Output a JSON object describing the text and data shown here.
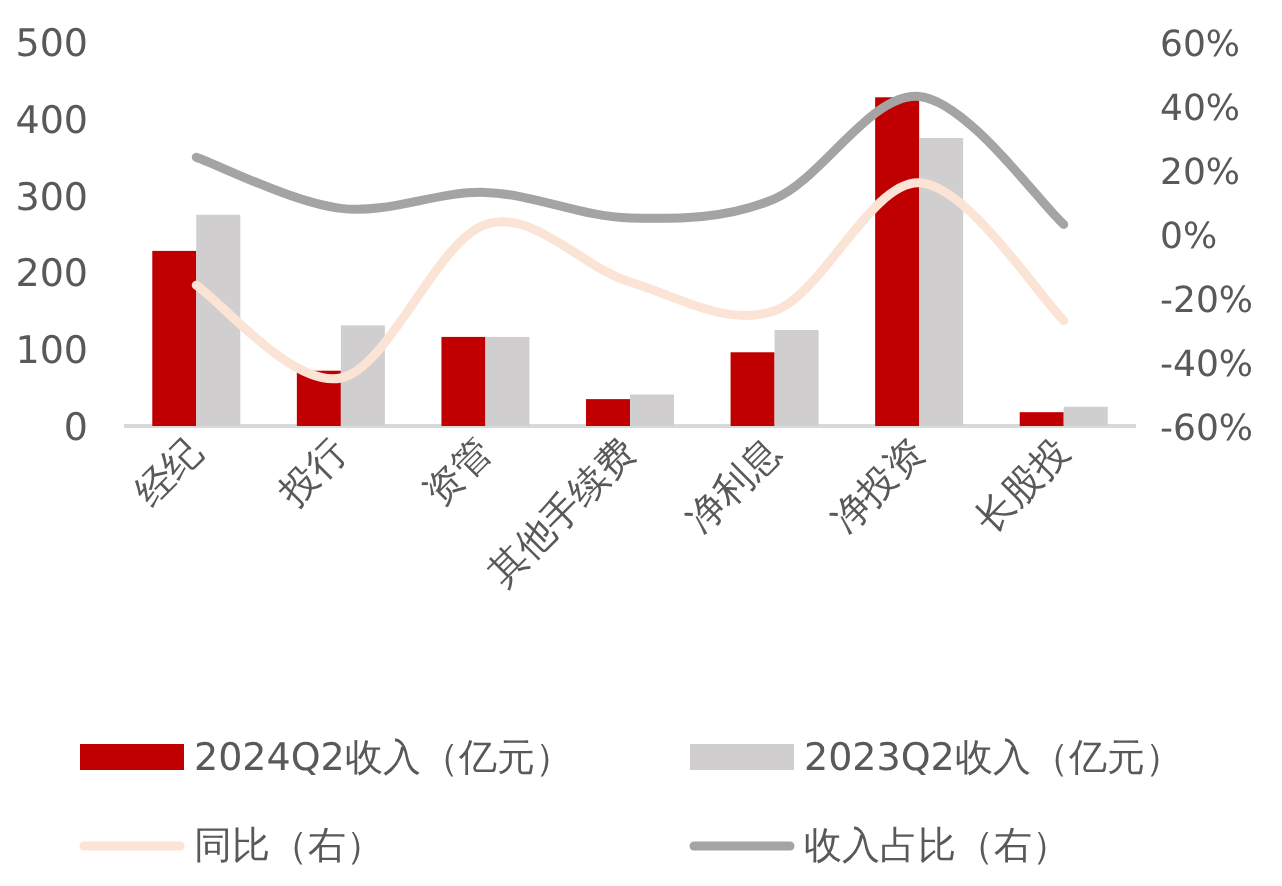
{
  "chart_data": {
    "type": "bar",
    "categories": [
      "经纪",
      "投行",
      "资管",
      "其他手续费",
      "净利息",
      "净投资",
      "长股投"
    ],
    "series": [
      {
        "name": "2024Q2收入（亿元）",
        "color": "#c00000",
        "values": [
          228,
          72,
          116,
          35,
          96,
          428,
          18
        ]
      },
      {
        "name": "2023Q2收入（亿元）",
        "color": "#d0cecf",
        "values": [
          275,
          131,
          116,
          41,
          125,
          375,
          25
        ]
      },
      {
        "name": "同比（右）",
        "type": "line",
        "axis": "y2",
        "color": "#fbe3d6",
        "values": [
          -16,
          -45,
          3,
          -15,
          -24,
          16,
          -27
        ]
      },
      {
        "name": "收入占比（右）",
        "type": "line",
        "axis": "y2",
        "color": "#a6a3a4",
        "values": [
          24,
          8,
          13,
          5,
          11,
          43,
          3
        ]
      }
    ],
    "ylim": [
      0,
      500
    ],
    "yticks": [
      0,
      100,
      200,
      300,
      400,
      500
    ],
    "y2lim": [
      -60,
      60
    ],
    "y2ticks": [
      {
        "value": -60,
        "label": "-60%"
      },
      {
        "value": -40,
        "label": "-40%"
      },
      {
        "value": -20,
        "label": "-20%"
      },
      {
        "value": 0,
        "label": "0%"
      },
      {
        "value": 20,
        "label": "20%"
      },
      {
        "value": 40,
        "label": "40%"
      },
      {
        "value": 60,
        "label": "60%"
      }
    ],
    "grid": false,
    "legend": "bottom"
  }
}
